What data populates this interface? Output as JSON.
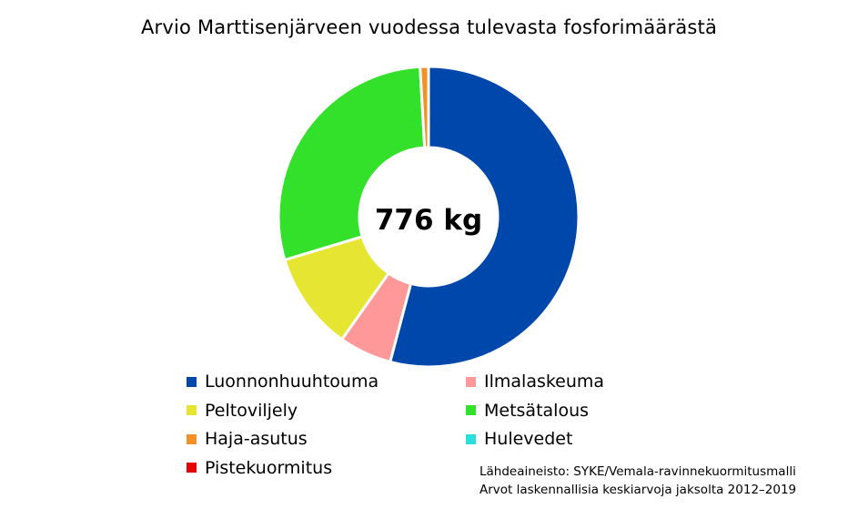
{
  "chart_data": {
    "type": "pie",
    "title": "Arvio Marttisenjärveen vuodessa tulevasta fosforimäärästä",
    "center_label": "776 kg",
    "total": 776,
    "unit": "kg",
    "categories": [
      "Luonnonhuuhtouma",
      "Ilmalaskeuma",
      "Peltoviljely",
      "Metsätalous",
      "Haja-asutus",
      "Hulevedet",
      "Pistekuormitus"
    ],
    "values": [
      420,
      44,
      82,
      223,
      7,
      0,
      0
    ],
    "colors": [
      "#0047AB",
      "#FF9999",
      "#E6E632",
      "#33E02A",
      "#F29127",
      "#29E0DC",
      "#E60000"
    ],
    "legend_position": "bottom"
  },
  "source": {
    "line1": "Lähdeaineisto: SYKE/Vemala-ravinnekuormitusmalli",
    "line2": "Arvot laskennallisia keskiarvoja jaksolta 2012–2019"
  }
}
